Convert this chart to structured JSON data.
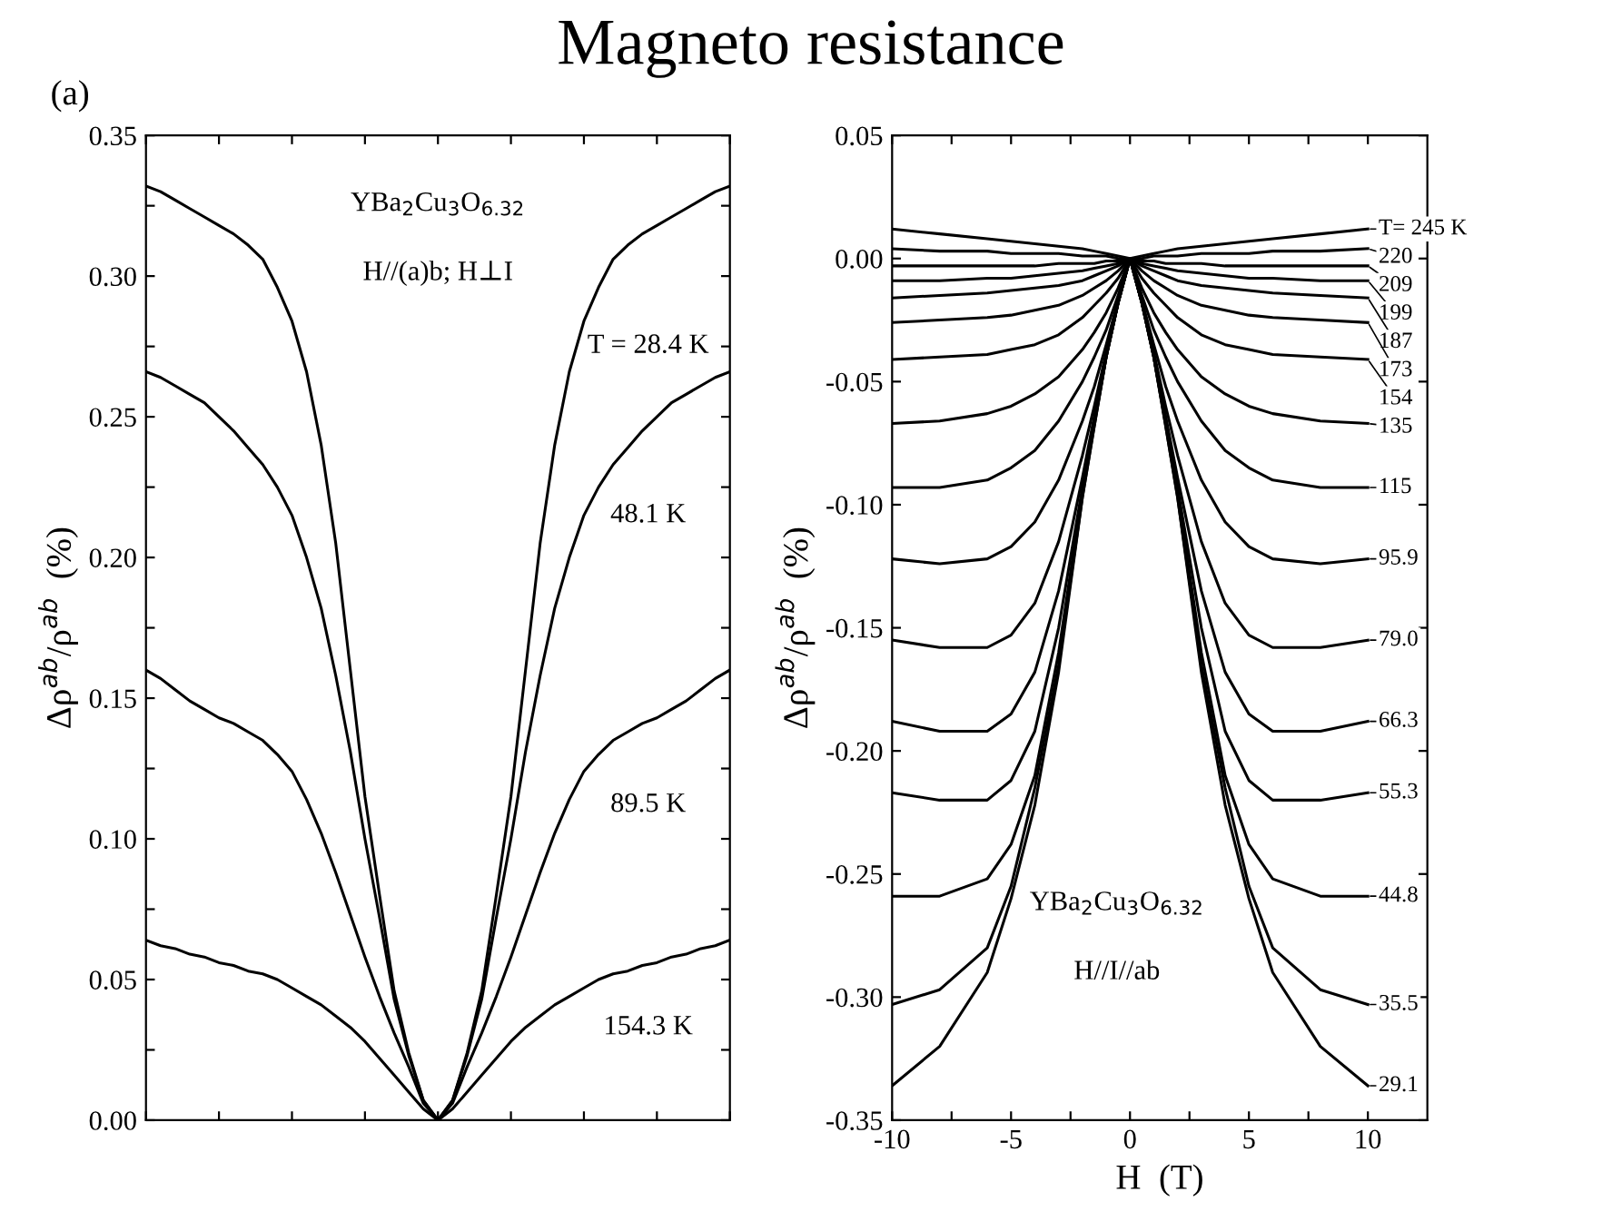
{
  "chart_data": [
    {
      "type": "line",
      "title": "Magneto resistance",
      "ylabel": "Δρ$^{ab}$/ρ$^{ab}$  (%)",
      "categories": [
        null,
        null,
        null,
        null,
        null,
        null,
        null,
        null,
        null,
        null,
        null,
        null,
        null,
        null,
        null,
        null,
        null,
        null,
        null,
        null,
        null,
        null,
        null,
        null,
        null,
        null,
        null,
        null,
        null,
        null,
        null,
        null,
        null,
        null,
        null,
        null,
        null,
        null,
        null,
        null,
        null
      ],
      "series": [
        {
          "color": "#000000",
          "values": [
            0.332,
            0.33,
            0.327,
            0.324,
            0.321,
            0.318,
            0.315,
            0.311,
            0.306,
            0.296,
            0.284,
            0.266,
            0.24,
            0.205,
            0.16,
            0.115,
            0.08,
            0.046,
            0.024,
            0.007,
            0,
            0.007,
            0.024,
            0.046,
            0.08,
            0.115,
            0.16,
            0.205,
            0.24,
            0.266,
            0.284,
            0.296,
            0.306,
            0.311,
            0.315,
            0.318,
            0.321,
            0.324,
            0.327,
            0.33,
            0.332
          ]
        },
        {
          "color": "#000000",
          "values": [
            0.266,
            0.264,
            0.261,
            0.258,
            0.255,
            0.25,
            0.245,
            0.239,
            0.233,
            0.225,
            0.215,
            0.2,
            0.182,
            0.158,
            0.131,
            0.1,
            0.072,
            0.043,
            0.023,
            0.007,
            0,
            0.007,
            0.023,
            0.043,
            0.072,
            0.1,
            0.131,
            0.158,
            0.182,
            0.2,
            0.215,
            0.225,
            0.233,
            0.239,
            0.245,
            0.25,
            0.255,
            0.258,
            0.261,
            0.264,
            0.266
          ]
        },
        {
          "color": "#000000",
          "values": [
            0.16,
            0.157,
            0.153,
            0.149,
            0.146,
            0.143,
            0.141,
            0.138,
            0.135,
            0.13,
            0.124,
            0.114,
            0.102,
            0.088,
            0.073,
            0.058,
            0.044,
            0.031,
            0.019,
            0.006,
            0,
            0.006,
            0.019,
            0.031,
            0.044,
            0.058,
            0.073,
            0.088,
            0.102,
            0.114,
            0.124,
            0.13,
            0.135,
            0.138,
            0.141,
            0.143,
            0.146,
            0.149,
            0.153,
            0.157,
            0.16
          ]
        },
        {
          "color": "#000000",
          "values": [
            0.064,
            0.062,
            0.061,
            0.059,
            0.058,
            0.056,
            0.055,
            0.053,
            0.052,
            0.05,
            0.047,
            0.044,
            0.041,
            0.037,
            0.033,
            0.028,
            0.022,
            0.016,
            0.01,
            0.004,
            0,
            0.004,
            0.01,
            0.016,
            0.022,
            0.028,
            0.033,
            0.037,
            0.041,
            0.044,
            0.047,
            0.05,
            0.052,
            0.053,
            0.055,
            0.056,
            0.058,
            0.059,
            0.061,
            0.062,
            0.064
          ]
        }
      ],
      "ylim": [
        0,
        0.35
      ],
      "yticks": [
        {
          "value": 0,
          "label": "0.00"
        },
        {
          "value": 0.025,
          "label": null
        },
        {
          "value": 0.05,
          "label": "0.05"
        },
        {
          "value": 0.075,
          "label": null
        },
        {
          "value": 0.1,
          "label": "0.10"
        },
        {
          "value": 0.125,
          "label": null
        },
        {
          "value": 0.15,
          "label": "0.15"
        },
        {
          "value": 0.175,
          "label": null
        },
        {
          "value": 0.2,
          "label": "0.20"
        },
        {
          "value": 0.225,
          "label": null
        },
        {
          "value": 0.25,
          "label": "0.25"
        },
        {
          "value": 0.275,
          "label": null
        },
        {
          "value": 0.3,
          "label": "0.30"
        },
        {
          "value": 0.325,
          "label": null
        },
        {
          "value": 0.35,
          "label": "0.35"
        }
      ],
      "tick_labels": "y",
      "grid": false,
      "legend": false,
      "marker": "none",
      "line_style": "solid",
      "annotations": [
        "(a)",
        "YBa$_{2}$Cu$_{3}$O$_{6.32}$",
        "H//(a)b; H⊥I",
        "T = 28.4 K",
        "48.1 K",
        "89.5 K",
        "154.3 K"
      ]
    },
    {
      "type": "line",
      "xlabel": "H  (T)",
      "ylabel": "Δρ$^{ab}$/ρ$^{ab}$  (%)",
      "x": [
        -10,
        -8,
        -6,
        -5,
        -4,
        -3,
        -2,
        -1.5,
        -1,
        -0.5,
        0,
        0.5,
        1,
        1.5,
        2,
        3,
        4,
        5,
        6,
        8,
        10
      ],
      "series": [
        {
          "color": "#000000",
          "values": [
            0.012,
            0.01,
            0.008,
            0.007,
            0.006,
            0.005,
            0.004,
            0.003,
            0.002,
            0.001,
            0,
            0.001,
            0.002,
            0.003,
            0.004,
            0.005,
            0.006,
            0.007,
            0.008,
            0.01,
            0.012
          ]
        },
        {
          "color": "#000000",
          "values": [
            0.004,
            0.003,
            0.003,
            0.002,
            0.002,
            0.002,
            0.001,
            0.001,
            0.001,
            0,
            0,
            0,
            0.001,
            0.001,
            0.001,
            0.002,
            0.002,
            0.002,
            0.003,
            0.003,
            0.004
          ]
        },
        {
          "color": "#000000",
          "values": [
            -0.003,
            -0.003,
            -0.003,
            -0.003,
            -0.003,
            -0.002,
            -0.002,
            -0.002,
            -0.001,
            -0.001,
            0,
            -0.001,
            -0.001,
            -0.002,
            -0.002,
            -0.002,
            -0.003,
            -0.003,
            -0.003,
            -0.003,
            -0.003
          ]
        },
        {
          "color": "#000000",
          "values": [
            -0.009,
            -0.009,
            -0.008,
            -0.008,
            -0.007,
            -0.006,
            -0.005,
            -0.004,
            -0.003,
            -0.002,
            0,
            -0.002,
            -0.003,
            -0.004,
            -0.005,
            -0.006,
            -0.007,
            -0.008,
            -0.008,
            -0.009,
            -0.009
          ]
        },
        {
          "color": "#000000",
          "values": [
            -0.016,
            -0.015,
            -0.014,
            -0.013,
            -0.012,
            -0.011,
            -0.009,
            -0.007,
            -0.005,
            -0.003,
            0,
            -0.003,
            -0.005,
            -0.007,
            -0.009,
            -0.011,
            -0.012,
            -0.013,
            -0.014,
            -0.015,
            -0.016
          ]
        },
        {
          "color": "#000000",
          "values": [
            -0.026,
            -0.025,
            -0.024,
            -0.023,
            -0.021,
            -0.019,
            -0.015,
            -0.012,
            -0.009,
            -0.005,
            0,
            -0.005,
            -0.009,
            -0.012,
            -0.015,
            -0.019,
            -0.021,
            -0.023,
            -0.024,
            -0.025,
            -0.026
          ]
        },
        {
          "color": "#000000",
          "values": [
            -0.041,
            -0.04,
            -0.039,
            -0.037,
            -0.035,
            -0.031,
            -0.024,
            -0.019,
            -0.014,
            -0.008,
            0,
            -0.008,
            -0.014,
            -0.019,
            -0.024,
            -0.031,
            -0.035,
            -0.037,
            -0.039,
            -0.04,
            -0.041
          ]
        },
        {
          "color": "#000000",
          "values": [
            -0.067,
            -0.066,
            -0.063,
            -0.06,
            -0.055,
            -0.048,
            -0.037,
            -0.03,
            -0.022,
            -0.012,
            0,
            -0.012,
            -0.022,
            -0.03,
            -0.037,
            -0.048,
            -0.055,
            -0.06,
            -0.063,
            -0.066,
            -0.067
          ]
        },
        {
          "color": "#000000",
          "values": [
            -0.093,
            -0.093,
            -0.09,
            -0.085,
            -0.078,
            -0.066,
            -0.05,
            -0.04,
            -0.029,
            -0.015,
            0,
            -0.015,
            -0.029,
            -0.04,
            -0.05,
            -0.066,
            -0.078,
            -0.085,
            -0.09,
            -0.093,
            -0.093
          ]
        },
        {
          "color": "#000000",
          "values": [
            -0.122,
            -0.124,
            -0.122,
            -0.117,
            -0.107,
            -0.09,
            -0.066,
            -0.052,
            -0.035,
            -0.017,
            0,
            -0.017,
            -0.035,
            -0.052,
            -0.066,
            -0.09,
            -0.107,
            -0.117,
            -0.122,
            -0.124,
            -0.122
          ]
        },
        {
          "color": "#000000",
          "values": [
            -0.155,
            -0.158,
            -0.158,
            -0.153,
            -0.14,
            -0.115,
            -0.08,
            -0.06,
            -0.038,
            -0.018,
            0,
            -0.018,
            -0.038,
            -0.06,
            -0.08,
            -0.115,
            -0.14,
            -0.153,
            -0.158,
            -0.158,
            -0.155
          ]
        },
        {
          "color": "#000000",
          "values": [
            -0.188,
            -0.192,
            -0.192,
            -0.185,
            -0.168,
            -0.135,
            -0.089,
            -0.064,
            -0.039,
            -0.018,
            0,
            -0.018,
            -0.039,
            -0.064,
            -0.089,
            -0.135,
            -0.168,
            -0.185,
            -0.192,
            -0.192,
            -0.188
          ]
        },
        {
          "color": "#000000",
          "values": [
            -0.217,
            -0.22,
            -0.22,
            -0.212,
            -0.192,
            -0.15,
            -0.093,
            -0.066,
            -0.04,
            -0.018,
            0,
            -0.018,
            -0.04,
            -0.066,
            -0.093,
            -0.15,
            -0.192,
            -0.212,
            -0.22,
            -0.22,
            -0.217
          ]
        },
        {
          "color": "#000000",
          "values": [
            -0.259,
            -0.259,
            -0.252,
            -0.238,
            -0.21,
            -0.16,
            -0.095,
            -0.067,
            -0.04,
            -0.018,
            0,
            -0.018,
            -0.04,
            -0.067,
            -0.095,
            -0.16,
            -0.21,
            -0.238,
            -0.252,
            -0.259,
            -0.259
          ]
        },
        {
          "color": "#000000",
          "values": [
            -0.303,
            -0.297,
            -0.28,
            -0.255,
            -0.215,
            -0.165,
            -0.097,
            -0.068,
            -0.04,
            -0.018,
            0,
            -0.018,
            -0.04,
            -0.068,
            -0.097,
            -0.165,
            -0.215,
            -0.255,
            -0.28,
            -0.297,
            -0.303
          ]
        },
        {
          "color": "#000000",
          "values": [
            -0.336,
            -0.32,
            -0.29,
            -0.26,
            -0.222,
            -0.168,
            -0.097,
            -0.068,
            -0.04,
            -0.018,
            0,
            -0.018,
            -0.04,
            -0.068,
            -0.097,
            -0.168,
            -0.222,
            -0.26,
            -0.29,
            -0.32,
            -0.336
          ]
        }
      ],
      "xlim": [
        -10,
        12.5
      ],
      "xticks": [
        -10,
        {
          "value": -7.5,
          "label": null
        },
        -5,
        {
          "value": -2.5,
          "label": null
        },
        0,
        {
          "value": 2.5,
          "label": null
        },
        5,
        {
          "value": 7.5,
          "label": null
        },
        10
      ],
      "ylim": [
        -0.35,
        0.05
      ],
      "yticks": [
        {
          "value": -0.35,
          "label": "-0.35"
        },
        {
          "value": -0.3,
          "label": "-0.30"
        },
        {
          "value": -0.25,
          "label": "-0.25"
        },
        {
          "value": -0.2,
          "label": "-0.20"
        },
        {
          "value": -0.15,
          "label": "-0.15"
        },
        {
          "value": -0.1,
          "label": "-0.10"
        },
        {
          "value": -0.05,
          "label": "-0.05"
        },
        {
          "value": 0,
          "label": "0.00"
        },
        {
          "value": 0.05,
          "label": "0.05"
        }
      ],
      "grid": false,
      "legend": false,
      "marker": "none",
      "line_style": "solid",
      "annotations": [
        "YBa$_{2}$Cu$_{3}$O$_{6.32}$",
        "H//I//ab",
        "T= 245 K",
        "220",
        "209",
        "199",
        "187",
        "173",
        "154",
        "135",
        "115",
        "95.9",
        "79.0",
        "66.3",
        "55.3",
        "44.8",
        "35.5",
        "29.1"
      ]
    }
  ]
}
